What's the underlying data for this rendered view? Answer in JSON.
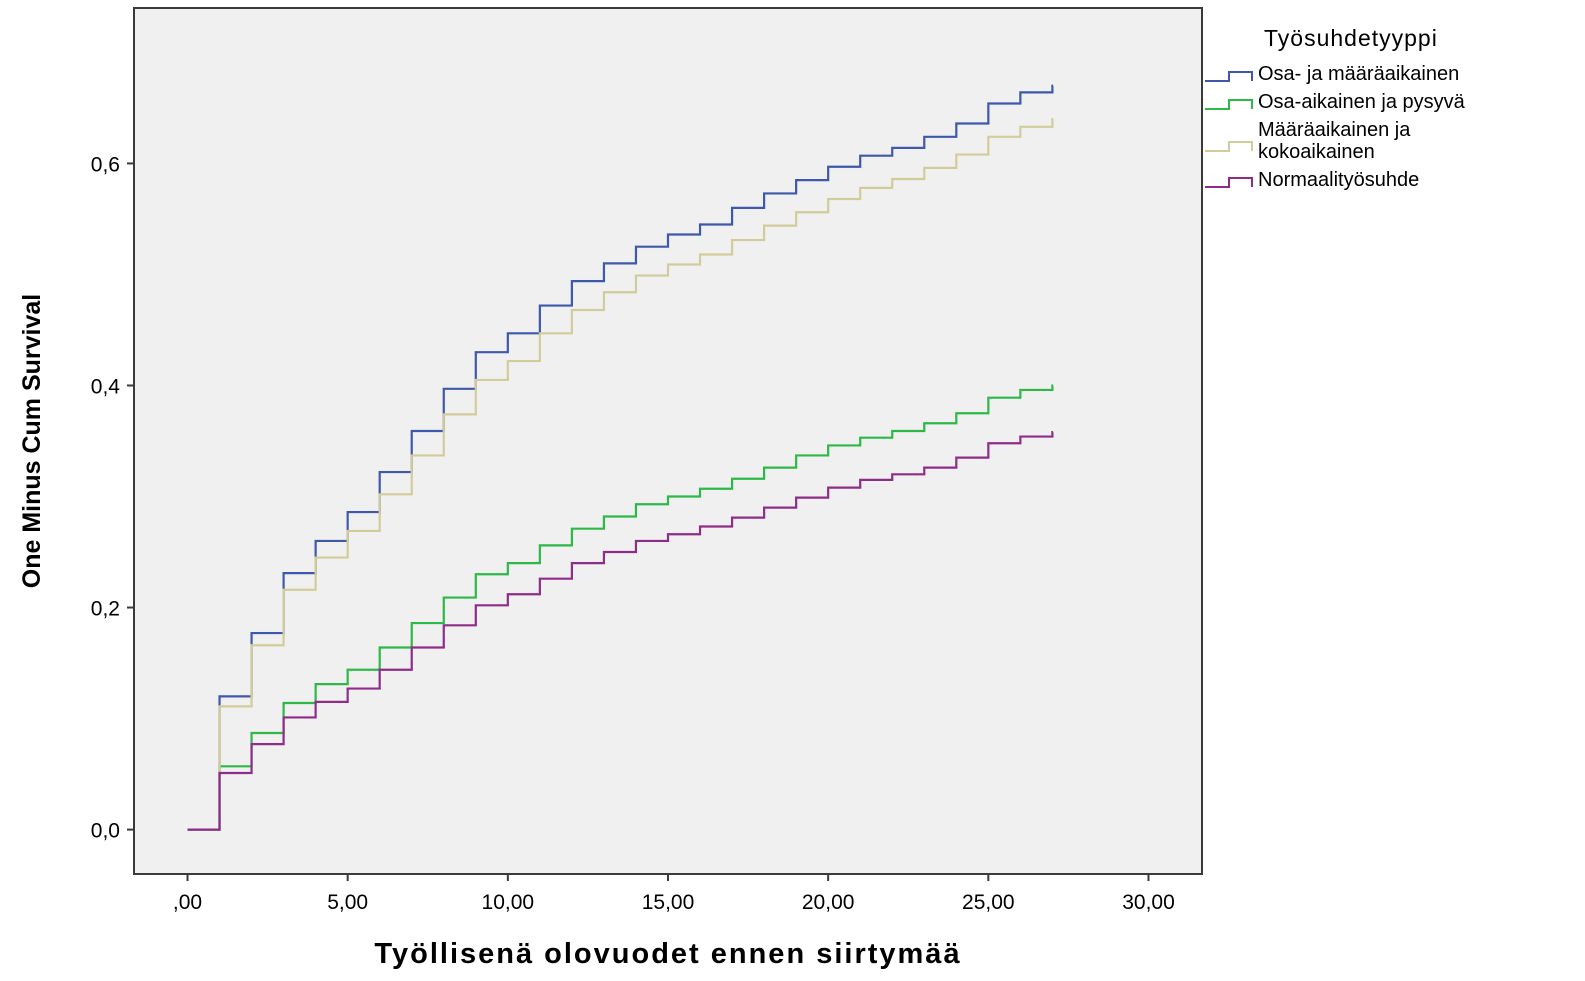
{
  "chart_data": {
    "type": "line",
    "step": true,
    "xlabel": "Työllisenä olovuodet ennen siirtymää",
    "ylabel": "One Minus Cum Survival",
    "xlim": [
      -1.67,
      31.67
    ],
    "ylim": [
      -0.04,
      0.74
    ],
    "x_ticks": [
      0,
      5,
      10,
      15,
      20,
      25,
      30
    ],
    "x_tick_labels": [
      ",00",
      "5,00",
      "10,00",
      "15,00",
      "20,00",
      "25,00",
      "30,00"
    ],
    "y_ticks": [
      0,
      0.2,
      0.4,
      0.6
    ],
    "y_tick_labels": [
      "0,0",
      "0,2",
      "0,4",
      "0,6"
    ],
    "grid": false,
    "plot_background": "#f0f0f0",
    "legend": {
      "title": "Työsuhdetyyppi",
      "placement": "right"
    },
    "x": [
      0,
      1,
      2,
      3,
      4,
      5,
      6,
      7,
      8,
      9,
      10,
      11,
      12,
      13,
      14,
      15,
      16,
      17,
      18,
      19,
      20,
      21,
      22,
      23,
      24,
      25,
      26,
      27
    ],
    "series": [
      {
        "name": "Osa- ja määräaikainen",
        "color": "#3e58ac",
        "values": [
          0,
          0.12,
          0.177,
          0.231,
          0.26,
          0.286,
          0.322,
          0.359,
          0.397,
          0.43,
          0.447,
          0.472,
          0.494,
          0.51,
          0.525,
          0.536,
          0.545,
          0.56,
          0.573,
          0.585,
          0.597,
          0.607,
          0.614,
          0.624,
          0.636,
          0.654,
          0.664,
          0.67
        ]
      },
      {
        "name": "Osa-aikainen ja pysyvä",
        "color": "#2eb848",
        "values": [
          0,
          0.057,
          0.087,
          0.114,
          0.131,
          0.144,
          0.164,
          0.186,
          0.209,
          0.23,
          0.24,
          0.256,
          0.271,
          0.282,
          0.293,
          0.3,
          0.307,
          0.316,
          0.326,
          0.337,
          0.346,
          0.353,
          0.359,
          0.366,
          0.375,
          0.389,
          0.396,
          0.4
        ]
      },
      {
        "name": "Määräaikainen ja kokoaikainen",
        "color": "#d2cc9a",
        "values": [
          0,
          0.111,
          0.166,
          0.216,
          0.245,
          0.269,
          0.302,
          0.337,
          0.374,
          0.405,
          0.422,
          0.447,
          0.468,
          0.484,
          0.499,
          0.509,
          0.518,
          0.531,
          0.544,
          0.556,
          0.568,
          0.578,
          0.586,
          0.596,
          0.608,
          0.624,
          0.633,
          0.64
        ]
      },
      {
        "name": "Normaalityösuhde",
        "color": "#8e2c8a",
        "values": [
          0,
          0.051,
          0.077,
          0.101,
          0.115,
          0.127,
          0.144,
          0.164,
          0.184,
          0.202,
          0.212,
          0.226,
          0.24,
          0.25,
          0.26,
          0.266,
          0.273,
          0.281,
          0.29,
          0.299,
          0.308,
          0.315,
          0.32,
          0.326,
          0.335,
          0.348,
          0.354,
          0.358
        ]
      }
    ]
  }
}
